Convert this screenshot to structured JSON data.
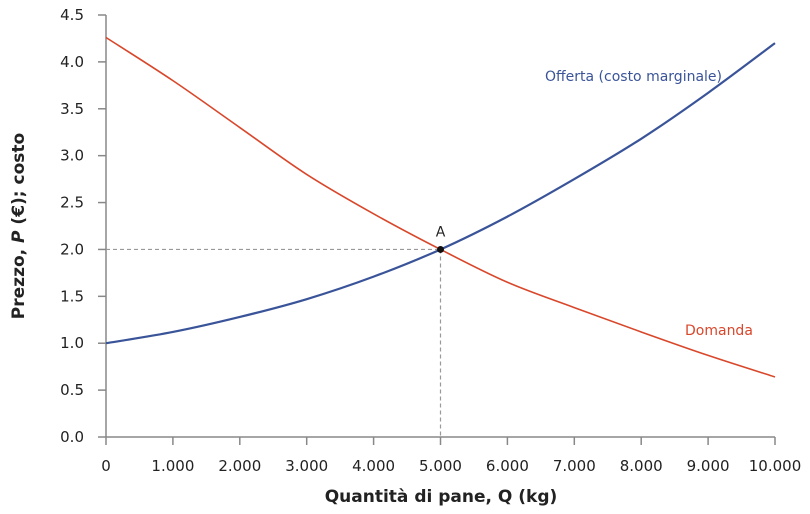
{
  "chart_data": {
    "type": "line",
    "title": "",
    "xlabel": "Quantità di pane, Q (kg)",
    "ylabel": "Prezzo, P (€); costo",
    "xlim": [
      0,
      10000
    ],
    "ylim": [
      0,
      4.5
    ],
    "grid": false,
    "x_ticks": [
      0,
      1000,
      2000,
      3000,
      4000,
      5000,
      6000,
      7000,
      8000,
      9000,
      10000
    ],
    "x_tick_labels": [
      "0",
      "1.000",
      "2.000",
      "3.000",
      "4.000",
      "5.000",
      "6.000",
      "7.000",
      "8.000",
      "9.000",
      "10.000"
    ],
    "y_ticks": [
      0,
      0.5,
      1,
      1.5,
      2,
      2.5,
      3,
      3.5,
      4,
      4.5
    ],
    "y_tick_labels": [
      "0.0",
      "0.5",
      "1.0",
      "1.5",
      "2.0",
      "2.5",
      "3.0",
      "3.5",
      "4.0",
      "4.5"
    ],
    "x": [
      0,
      1000,
      2000,
      3000,
      4000,
      5000,
      6000,
      7000,
      8000,
      9000,
      10000
    ],
    "series": [
      {
        "name": "Offerta (costo marginale)",
        "color": "#3a5499",
        "values": [
          1.0,
          1.12,
          1.28,
          1.47,
          1.71,
          2.0,
          2.35,
          2.75,
          3.18,
          3.67,
          4.2
        ]
      },
      {
        "name": "Domanda",
        "color": "#d9472b",
        "values": [
          4.26,
          3.8,
          3.3,
          2.8,
          2.38,
          2.0,
          1.65,
          1.38,
          1.12,
          0.87,
          0.64
        ]
      }
    ],
    "annotations": [
      {
        "label": "A",
        "x": 5000,
        "y": 2.0,
        "guides": "dashed lines to both axes"
      }
    ]
  },
  "labels": {
    "supply": "Offerta (costo marginale)",
    "demand": "Domanda",
    "point": "A",
    "xlabel": "Quantità di pane, Q (kg)",
    "ylabel_pre": "Prezzo, ",
    "ylabel_P": "P",
    "ylabel_post": " (€); costo"
  },
  "colors": {
    "supply": "#3a5499",
    "demand": "#d9472b",
    "axis": "#888888",
    "guide": "#999999"
  }
}
